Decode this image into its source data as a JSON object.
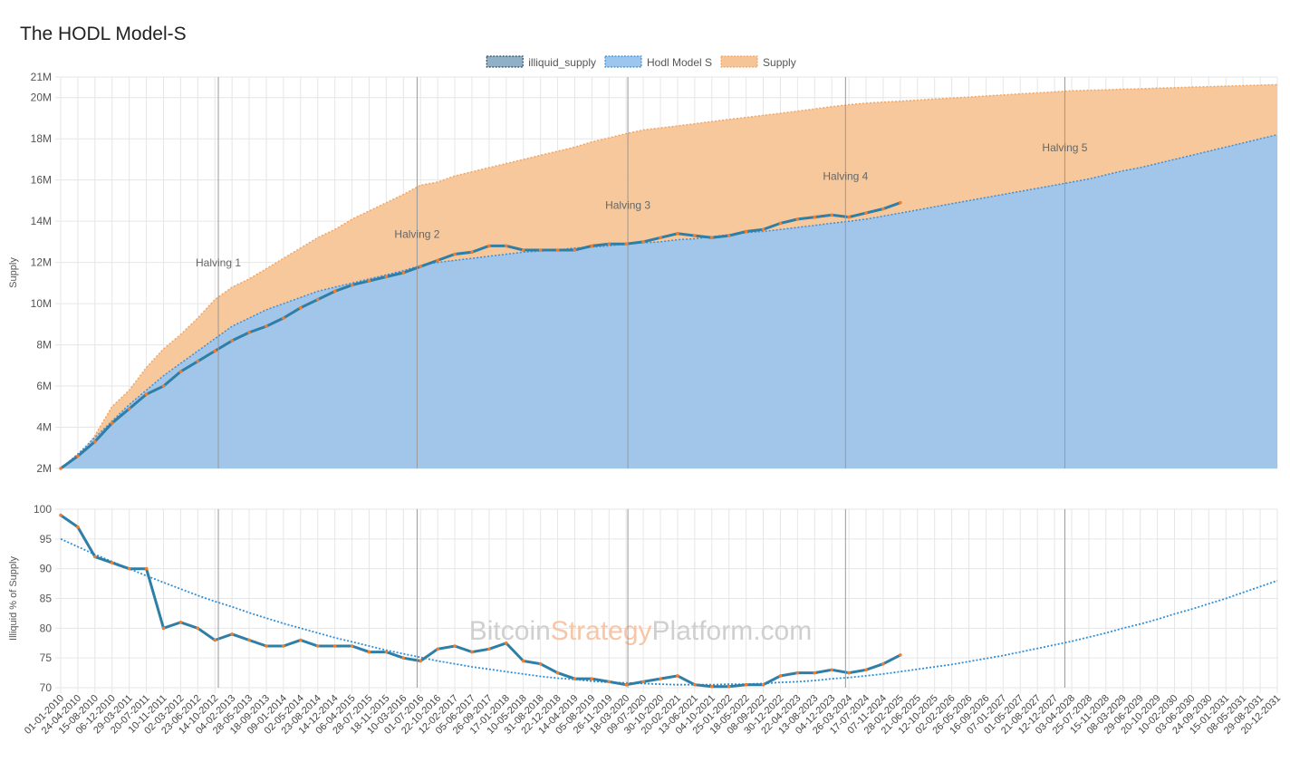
{
  "title": "The HODL Model-S",
  "watermark": [
    "Bitcoin",
    "Strategy",
    "Platform.com"
  ],
  "chart_data": [
    {
      "type": "area",
      "y_label": "Supply",
      "legend": "top",
      "grid": true,
      "categories": [
        "01-01-2010",
        "24-04-2010",
        "15-08-2010",
        "06-12-2010",
        "29-03-2011",
        "20-07-2011",
        "10-11-2011",
        "02-03-2012",
        "23-06-2012",
        "14-10-2012",
        "04-02-2013",
        "28-05-2013",
        "18-09-2013",
        "09-01-2014",
        "02-05-2014",
        "23-08-2014",
        "14-12-2014",
        "06-04-2015",
        "28-07-2015",
        "18-11-2015",
        "10-03-2016",
        "01-07-2016",
        "22-10-2016",
        "12-02-2017",
        "05-06-2017",
        "26-09-2017",
        "17-01-2018",
        "10-05-2018",
        "31-08-2018",
        "22-12-2018",
        "14-04-2019",
        "05-08-2019",
        "26-11-2019",
        "18-03-2020",
        "09-07-2020",
        "30-10-2020",
        "20-02-2021",
        "13-06-2021",
        "04-10-2021",
        "25-01-2022",
        "18-05-2022",
        "08-09-2022",
        "30-12-2022",
        "22-04-2023",
        "13-08-2023",
        "04-12-2023",
        "26-03-2024",
        "17-07-2024",
        "07-11-2024",
        "28-02-2025",
        "21-06-2025",
        "12-10-2025",
        "02-02-2026",
        "26-05-2026",
        "16-09-2026",
        "07-01-2027",
        "01-05-2027",
        "21-08-2027",
        "12-12-2027",
        "03-04-2028",
        "25-07-2028",
        "15-11-2028",
        "08-03-2029",
        "29-06-2029",
        "20-10-2029",
        "10-02-2030",
        "03-06-2030",
        "24-09-2030",
        "15-01-2031",
        "08-05-2031",
        "29-08-2031",
        "20-12-2031"
      ],
      "ylim": [
        2000000,
        21000000
      ],
      "yticks": [
        {
          "value": 2000000,
          "label": "2M"
        },
        {
          "value": 4000000,
          "label": "4M"
        },
        {
          "value": 6000000,
          "label": "6M"
        },
        {
          "value": 8000000,
          "label": "8M"
        },
        {
          "value": 10000000,
          "label": "10M"
        },
        {
          "value": 12000000,
          "label": "12M"
        },
        {
          "value": 14000000,
          "label": "14M"
        },
        {
          "value": 16000000,
          "label": "16M"
        },
        {
          "value": 18000000,
          "label": "18M"
        },
        {
          "value": 20000000,
          "label": "20M"
        },
        {
          "value": 21000000,
          "label": "21M"
        }
      ],
      "annotations": [
        {
          "text": "Halving 1",
          "x": 9.2,
          "y": 11800000
        },
        {
          "text": "Halving 2",
          "x": 20.8,
          "y": 13200000
        },
        {
          "text": "Halving 3",
          "x": 33.1,
          "y": 14600000
        },
        {
          "text": "Halving 4",
          "x": 45.8,
          "y": 16000000
        },
        {
          "text": "Halving 5",
          "x": 58.6,
          "y": 17400000
        }
      ],
      "series": [
        {
          "name": "illiquid_supply",
          "color": "#2f7ea6",
          "fill": false,
          "values": [
            2000000,
            2600000,
            3300000,
            4200000,
            4900000,
            5600000,
            6000000,
            6700000,
            7200000,
            7700000,
            8200000,
            8600000,
            8900000,
            9300000,
            9800000,
            10200000,
            10600000,
            10900000,
            11100000,
            11300000,
            11500000,
            11800000,
            12100000,
            12400000,
            12500000,
            12800000,
            12800000,
            12600000,
            12600000,
            12600000,
            12600000,
            12800000,
            12900000,
            12900000,
            13000000,
            13200000,
            13400000,
            13300000,
            13200000,
            13300000,
            13500000,
            13600000,
            13900000,
            14100000,
            14200000,
            14300000,
            14200000,
            14400000,
            14600000,
            14900000,
            null,
            null,
            null,
            null,
            null,
            null,
            null,
            null,
            null,
            null,
            null,
            null,
            null,
            null,
            null,
            null,
            null,
            null,
            null,
            null,
            null,
            null
          ]
        },
        {
          "name": "Hodl Model S",
          "color": "#9dc6ee",
          "fill": true,
          "values": [
            2000000,
            2700000,
            3500000,
            4300000,
            5100000,
            5800000,
            6500000,
            7100000,
            7700000,
            8300000,
            8900000,
            9300000,
            9700000,
            10000000,
            10300000,
            10600000,
            10800000,
            11000000,
            11200000,
            11400000,
            11600000,
            11850000,
            12000000,
            12100000,
            12200000,
            12300000,
            12400000,
            12500000,
            12550000,
            12600000,
            12700000,
            12750000,
            12800000,
            12900000,
            12950000,
            13000000,
            13100000,
            13150000,
            13250000,
            13350000,
            13450000,
            13500000,
            13600000,
            13700000,
            13800000,
            13900000,
            14000000,
            14100000,
            14250000,
            14400000,
            14550000,
            14700000,
            14850000,
            15000000,
            15150000,
            15300000,
            15450000,
            15600000,
            15750000,
            15900000,
            16050000,
            16250000,
            16450000,
            16600000,
            16800000,
            17000000,
            17200000,
            17400000,
            17600000,
            17800000,
            18000000,
            18200000
          ]
        },
        {
          "name": "Supply",
          "color": "#f6c597",
          "fill": true,
          "values": [
            2000000,
            2500000,
            3600000,
            5000000,
            5800000,
            6900000,
            7800000,
            8500000,
            9300000,
            10200000,
            10800000,
            11200000,
            11700000,
            12200000,
            12700000,
            13200000,
            13600000,
            14100000,
            14500000,
            14900000,
            15300000,
            15750000,
            15900000,
            16200000,
            16400000,
            16600000,
            16800000,
            17000000,
            17200000,
            17400000,
            17600000,
            17850000,
            18050000,
            18250000,
            18430000,
            18530000,
            18630000,
            18730000,
            18840000,
            18940000,
            19040000,
            19140000,
            19240000,
            19340000,
            19450000,
            19560000,
            19660000,
            19730000,
            19780000,
            19830000,
            19880000,
            19930000,
            19980000,
            20030000,
            20080000,
            20130000,
            20180000,
            20230000,
            20280000,
            20330000,
            20360000,
            20380000,
            20410000,
            20430000,
            20460000,
            20480000,
            20510000,
            20530000,
            20560000,
            20580000,
            20610000,
            20630000
          ]
        }
      ]
    },
    {
      "type": "line",
      "y_label": "Illiquid % of Supply",
      "grid": true,
      "categories": [
        "01-01-2010",
        "24-04-2010",
        "15-08-2010",
        "06-12-2010",
        "29-03-2011",
        "20-07-2011",
        "10-11-2011",
        "02-03-2012",
        "23-06-2012",
        "14-10-2012",
        "04-02-2013",
        "28-05-2013",
        "18-09-2013",
        "09-01-2014",
        "02-05-2014",
        "23-08-2014",
        "14-12-2014",
        "06-04-2015",
        "28-07-2015",
        "18-11-2015",
        "10-03-2016",
        "01-07-2016",
        "22-10-2016",
        "12-02-2017",
        "05-06-2017",
        "26-09-2017",
        "17-01-2018",
        "10-05-2018",
        "31-08-2018",
        "22-12-2018",
        "14-04-2019",
        "05-08-2019",
        "26-11-2019",
        "18-03-2020",
        "09-07-2020",
        "30-10-2020",
        "20-02-2021",
        "13-06-2021",
        "04-10-2021",
        "25-01-2022",
        "18-05-2022",
        "08-09-2022",
        "30-12-2022",
        "22-04-2023",
        "13-08-2023",
        "04-12-2023",
        "26-03-2024",
        "17-07-2024",
        "07-11-2024",
        "28-02-2025",
        "21-06-2025",
        "12-10-2025",
        "02-02-2026",
        "26-05-2026",
        "16-09-2026",
        "07-01-2027",
        "01-05-2027",
        "21-08-2027",
        "12-12-2027",
        "03-04-2028",
        "25-07-2028",
        "15-11-2028",
        "08-03-2029",
        "29-06-2029",
        "20-10-2029",
        "10-02-2030",
        "03-06-2030",
        "24-09-2030",
        "15-01-2031",
        "08-05-2031",
        "29-08-2031",
        "20-12-2031"
      ],
      "ylim": [
        70,
        100
      ],
      "yticks": [
        70,
        75,
        80,
        85,
        90,
        95,
        100
      ],
      "vlines": [
        9.2,
        20.8,
        33.1,
        45.8,
        58.6
      ],
      "series": [
        {
          "color": "#2f7ea6",
          "markers": "#ef7d2d",
          "values": [
            99,
            97,
            92,
            91,
            90,
            90,
            80,
            81,
            80,
            78,
            79,
            78,
            77,
            77,
            78,
            77,
            77,
            77,
            76,
            76,
            75,
            74.5,
            76.5,
            77,
            76,
            76.5,
            77.5,
            74.5,
            74,
            72.5,
            71.5,
            71.5,
            71,
            70.5,
            71,
            71.5,
            72,
            70.5,
            70.2,
            70.2,
            70.5,
            70.5,
            72,
            72.5,
            72.5,
            73,
            72.5,
            73,
            74,
            75.5,
            null,
            null,
            null,
            null,
            null,
            null,
            null,
            null,
            null,
            null,
            null,
            null,
            null,
            null,
            null,
            null,
            null,
            null,
            null,
            null,
            null,
            null
          ]
        },
        {
          "color": "#2f8fd8",
          "dashed": true,
          "values": [
            95,
            93.7,
            92.4,
            91.2,
            90,
            88.8,
            87.7,
            86.6,
            85.5,
            84.5,
            83.6,
            82.6,
            81.7,
            80.8,
            80,
            79.2,
            78.4,
            77.7,
            77,
            76.3,
            75.7,
            75.1,
            74.5,
            74,
            73.5,
            73.1,
            72.7,
            72.3,
            71.9,
            71.6,
            71.4,
            71.1,
            70.9,
            70.8,
            70.7,
            70.6,
            70.5,
            70.5,
            70.5,
            70.6,
            70.6,
            70.7,
            70.9,
            71,
            71.2,
            71.5,
            71.7,
            72,
            72.3,
            72.7,
            73.1,
            73.5,
            73.9,
            74.4,
            74.9,
            75.4,
            76,
            76.6,
            77.2,
            77.8,
            78.5,
            79.2,
            80,
            80.7,
            81.5,
            82.4,
            83.2,
            84.1,
            85,
            86,
            87,
            88
          ]
        }
      ]
    }
  ]
}
